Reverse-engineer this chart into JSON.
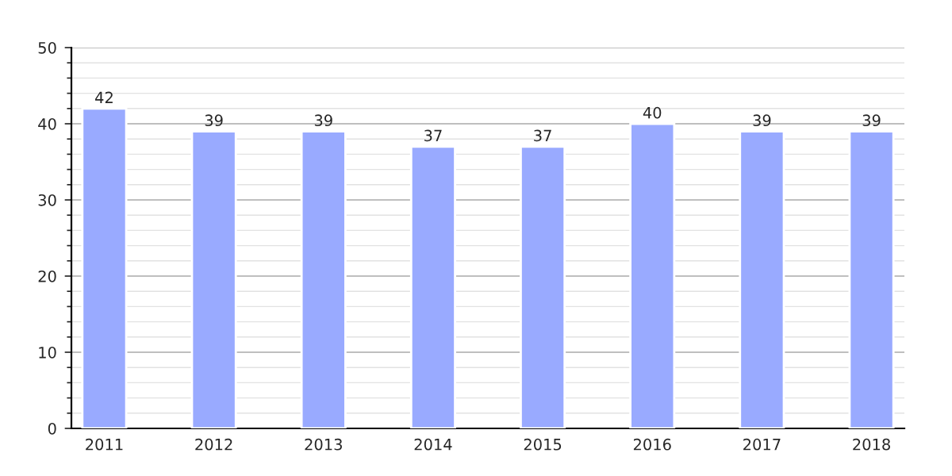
{
  "chart_data": {
    "type": "bar",
    "categories": [
      "2011",
      "2012",
      "2013",
      "2014",
      "2015",
      "2016",
      "2017",
      "2018"
    ],
    "values": [
      42,
      39,
      39,
      37,
      37,
      40,
      39,
      39
    ],
    "color": "#99aaff",
    "ylim": [
      0,
      50
    ],
    "yticks": [
      0,
      10,
      20,
      30,
      40,
      50
    ],
    "grid": "y",
    "data_labels": true
  }
}
